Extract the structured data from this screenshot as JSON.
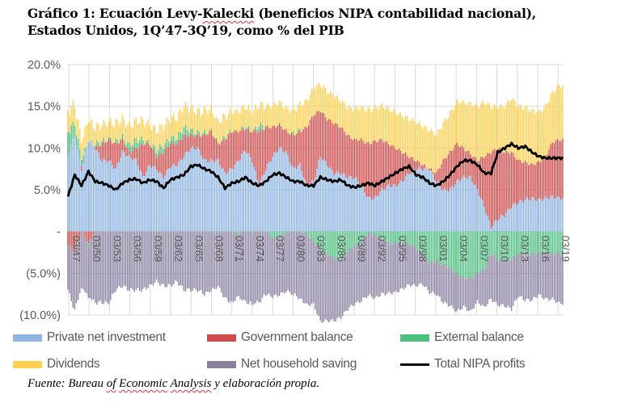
{
  "title": {
    "line1_prefix": "Gráfico 1: Ecuación Levy-",
    "line1_underlined": "Kalecki",
    "line1_suffix": " (beneficios NIPA contabilidad nacional),",
    "line2": "Estados Unidos, 1Q’47-3Q’19, como % del PIB"
  },
  "source": {
    "prefix": "Fuente: Bureau ",
    "u1": "of",
    "mid1": " ",
    "u2": "Economic",
    "mid2": " ",
    "u3": "Analysis",
    "suffix": " y elaboración propia."
  },
  "chart_data": {
    "type": "bar",
    "stacked": true,
    "title": "Gráfico 1: Ecuación Levy-Kalecki (beneficios NIPA contabilidad nacional), Estados Unidos, 1Q’47-3Q’19, como % del PIB",
    "xlabel": "",
    "ylabel": "",
    "ylim": [
      -10,
      20
    ],
    "yticks": [
      20,
      15,
      10,
      5,
      0,
      -5,
      -10
    ],
    "ytick_labels": [
      "20.0%",
      "15.0%",
      "10.0%",
      "5.0%",
      "-",
      "(5.0%)",
      "(10.0%)"
    ],
    "xtick_labels": [
      "03/47",
      "03/50",
      "03/53",
      "03/56",
      "03/59",
      "03/62",
      "03/65",
      "03/68",
      "03/71",
      "03/74",
      "03/77",
      "03/80",
      "03/83",
      "03/86",
      "03/89",
      "03/92",
      "03/95",
      "03/98",
      "03/01",
      "03/04",
      "03/07",
      "03/10",
      "03/13",
      "03/16",
      "03/19"
    ],
    "grid": true,
    "legend_position": "bottom",
    "frequency_note": "Annual samples estimated from quarterly chart",
    "x": [
      1947,
      1948,
      1949,
      1950,
      1951,
      1952,
      1953,
      1954,
      1955,
      1956,
      1957,
      1958,
      1959,
      1960,
      1961,
      1962,
      1963,
      1964,
      1965,
      1966,
      1967,
      1968,
      1969,
      1970,
      1971,
      1972,
      1973,
      1974,
      1975,
      1976,
      1977,
      1978,
      1979,
      1980,
      1981,
      1982,
      1983,
      1984,
      1985,
      1986,
      1987,
      1988,
      1989,
      1990,
      1991,
      1992,
      1993,
      1994,
      1995,
      1996,
      1997,
      1998,
      1999,
      2000,
      2001,
      2002,
      2003,
      2004,
      2005,
      2006,
      2007,
      2008,
      2009,
      2010,
      2011,
      2012,
      2013,
      2014,
      2015,
      2016,
      2017,
      2018,
      2019
    ],
    "series": [
      {
        "name": "Private net investment",
        "color": "#8EB4E3",
        "kind": "bar",
        "values": [
          9.0,
          11.5,
          7.5,
          11.0,
          10.0,
          8.5,
          8.5,
          7.5,
          9.5,
          9.0,
          8.5,
          6.5,
          8.0,
          7.5,
          6.5,
          7.8,
          8.0,
          9.0,
          10.0,
          10.0,
          8.5,
          8.5,
          8.5,
          7.0,
          7.5,
          8.5,
          9.8,
          8.5,
          5.5,
          7.5,
          9.0,
          10.0,
          9.5,
          7.5,
          8.0,
          5.5,
          6.0,
          9.0,
          8.0,
          7.0,
          7.0,
          6.5,
          6.5,
          5.5,
          4.0,
          4.0,
          5.0,
          5.5,
          5.5,
          6.0,
          7.0,
          7.5,
          7.5,
          7.5,
          6.0,
          5.0,
          5.0,
          6.0,
          6.5,
          6.5,
          5.0,
          3.0,
          0.5,
          1.5,
          2.0,
          3.0,
          3.5,
          3.8,
          4.0,
          3.8,
          4.0,
          4.2,
          4.0
        ]
      },
      {
        "name": "Government balance",
        "color": "#D04A4A",
        "kind": "bar",
        "values": [
          -1.5,
          -2.5,
          0.5,
          -1.5,
          0.0,
          2.0,
          2.5,
          3.0,
          1.5,
          0.5,
          1.5,
          4.0,
          2.5,
          1.5,
          3.0,
          2.8,
          2.5,
          2.5,
          1.5,
          1.5,
          3.0,
          3.5,
          2.0,
          4.0,
          4.5,
          3.5,
          2.5,
          3.5,
          6.5,
          5.0,
          3.5,
          2.8,
          2.5,
          4.0,
          4.0,
          7.0,
          8.0,
          5.5,
          5.5,
          6.0,
          5.5,
          5.0,
          4.5,
          5.5,
          6.5,
          6.8,
          6.0,
          5.0,
          4.5,
          3.5,
          2.0,
          1.0,
          0.5,
          0.0,
          1.0,
          3.5,
          4.5,
          4.5,
          3.5,
          2.8,
          3.5,
          6.0,
          9.0,
          8.5,
          7.5,
          6.5,
          5.0,
          4.5,
          4.0,
          4.5,
          5.0,
          6.5,
          7.0
        ]
      },
      {
        "name": "External balance",
        "color": "#4DBF7F",
        "kind": "bar",
        "values": [
          3.0,
          1.5,
          1.0,
          -0.5,
          0.5,
          0.3,
          0.0,
          0.3,
          0.3,
          0.8,
          1.0,
          0.5,
          0.0,
          0.8,
          0.8,
          0.6,
          0.7,
          1.0,
          0.6,
          0.3,
          0.3,
          0.0,
          0.0,
          0.3,
          0.0,
          -0.3,
          0.4,
          -0.2,
          0.8,
          0.0,
          -0.8,
          -0.6,
          -0.1,
          0.2,
          0.1,
          -0.3,
          -1.2,
          -2.3,
          -2.7,
          -3.2,
          -3.3,
          -2.3,
          -1.7,
          -1.3,
          -0.1,
          -0.5,
          -1.0,
          -1.4,
          -1.3,
          -1.4,
          -1.4,
          -2.0,
          -2.8,
          -3.8,
          -3.5,
          -4.0,
          -4.4,
          -5.1,
          -5.5,
          -5.6,
          -4.9,
          -4.6,
          -2.6,
          -3.3,
          -3.4,
          -3.3,
          -2.7,
          -2.7,
          -2.7,
          -2.6,
          -2.6,
          -2.6,
          -2.6
        ]
      },
      {
        "name": "Dividends",
        "color": "#FFD050",
        "kind": "bar",
        "values": [
          2.5,
          2.2,
          2.2,
          2.5,
          2.0,
          2.0,
          2.0,
          2.2,
          2.2,
          2.3,
          2.3,
          2.3,
          2.3,
          2.3,
          2.4,
          2.4,
          2.5,
          2.6,
          2.6,
          2.6,
          2.6,
          2.6,
          2.6,
          2.5,
          2.4,
          2.4,
          2.4,
          2.4,
          2.4,
          2.5,
          2.6,
          2.7,
          2.7,
          2.9,
          3.0,
          3.2,
          3.2,
          3.2,
          3.3,
          3.3,
          3.2,
          3.3,
          3.7,
          3.9,
          4.0,
          4.0,
          4.1,
          4.2,
          4.3,
          4.4,
          4.5,
          4.6,
          4.6,
          4.7,
          4.6,
          4.5,
          4.7,
          5.0,
          5.5,
          6.0,
          6.5,
          6.5,
          5.5,
          5.0,
          5.5,
          6.5,
          6.5,
          6.5,
          6.5,
          6.0,
          6.0,
          6.0,
          6.5
        ]
      },
      {
        "name": "Net household saving",
        "color": "#8B7FA0",
        "kind": "bar",
        "values": [
          -5.5,
          -7.0,
          -7.0,
          -6.0,
          -8.5,
          -8.5,
          -8.5,
          -7.0,
          -6.5,
          -7.0,
          -7.0,
          -7.0,
          -6.5,
          -6.0,
          -6.5,
          -6.5,
          -6.0,
          -7.0,
          -7.0,
          -7.0,
          -7.5,
          -7.0,
          -6.5,
          -8.0,
          -8.5,
          -7.5,
          -8.5,
          -8.5,
          -8.5,
          -7.5,
          -7.0,
          -7.0,
          -7.0,
          -7.5,
          -8.0,
          -8.5,
          -7.5,
          -8.5,
          -8.0,
          -7.5,
          -7.0,
          -7.0,
          -7.0,
          -7.0,
          -7.5,
          -7.5,
          -6.5,
          -6.0,
          -6.0,
          -5.5,
          -5.0,
          -4.5,
          -3.5,
          -3.5,
          -4.0,
          -4.5,
          -4.5,
          -4.5,
          -3.5,
          -4.0,
          -3.5,
          -4.5,
          -5.5,
          -5.5,
          -5.5,
          -6.0,
          -5.0,
          -5.5,
          -5.5,
          -5.0,
          -5.5,
          -5.5,
          -6.0
        ]
      },
      {
        "name": "Total NIPA profits",
        "color": "#000000",
        "kind": "line",
        "values": [
          4.2,
          6.8,
          5.5,
          7.2,
          6.0,
          5.8,
          5.5,
          5.0,
          5.8,
          6.2,
          6.3,
          5.8,
          6.2,
          6.0,
          5.2,
          6.2,
          6.5,
          6.8,
          7.8,
          8.0,
          7.5,
          7.2,
          6.5,
          5.2,
          5.8,
          6.0,
          6.5,
          5.8,
          5.5,
          6.0,
          6.8,
          7.0,
          6.5,
          6.0,
          6.0,
          5.5,
          5.5,
          6.5,
          6.2,
          6.0,
          6.2,
          5.5,
          5.3,
          5.5,
          5.8,
          5.5,
          6.0,
          6.5,
          7.0,
          7.5,
          7.8,
          6.8,
          6.5,
          5.8,
          5.5,
          6.0,
          6.8,
          7.8,
          8.5,
          8.5,
          8.0,
          7.0,
          7.0,
          9.5,
          10.0,
          10.5,
          10.0,
          10.2,
          9.5,
          9.0,
          8.8,
          8.8,
          8.8
        ]
      }
    ]
  },
  "legend": {
    "items": [
      {
        "label": "Private net investment",
        "color": "#8EB4E3",
        "kind": "swatch"
      },
      {
        "label": "Government balance",
        "color": "#D04A4A",
        "kind": "swatch"
      },
      {
        "label": "External balance",
        "color": "#4DBF7F",
        "kind": "swatch"
      },
      {
        "label": "Dividends",
        "color": "#FFD050",
        "kind": "swatch"
      },
      {
        "label": "Net household saving",
        "color": "#8B7FA0",
        "kind": "swatch"
      },
      {
        "label": "Total NIPA profits",
        "color": "#000000",
        "kind": "line"
      }
    ]
  }
}
